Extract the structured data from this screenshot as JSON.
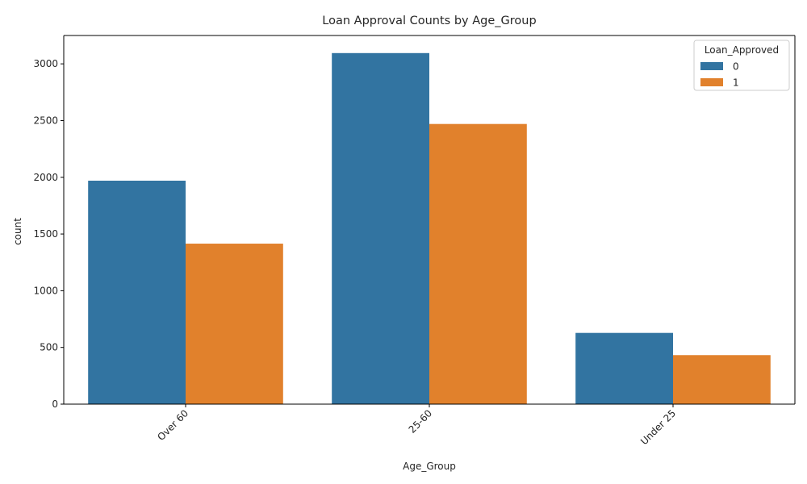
{
  "chart_data": {
    "type": "bar",
    "title": "Loan Approval Counts by Age_Group",
    "xlabel": "Age_Group",
    "ylabel": "count",
    "categories": [
      "Over 60",
      "25-60",
      "Under 25"
    ],
    "series": [
      {
        "name": "0",
        "color": "#3274a1",
        "values": [
          1970,
          3095,
          628
        ]
      },
      {
        "name": "1",
        "color": "#e1812c",
        "values": [
          1415,
          2470,
          432
        ]
      }
    ],
    "ylim": [
      0,
      3250
    ],
    "yticks": [
      0,
      500,
      1000,
      1500,
      2000,
      2500,
      3000
    ],
    "legend": {
      "title": "Loan_Approved",
      "placement": "top-right"
    },
    "grid": false
  }
}
